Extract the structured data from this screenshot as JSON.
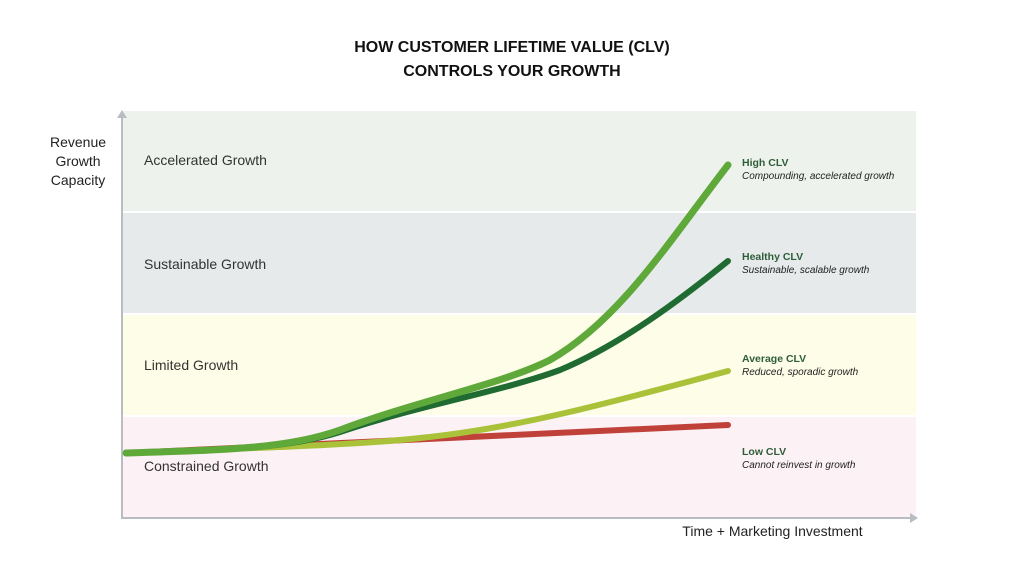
{
  "title": {
    "line1": "HOW CUSTOMER LIFETIME VALUE (CLV)",
    "line2": "CONTROLS YOUR GROWTH"
  },
  "axes": {
    "y_label_lines": [
      "Revenue",
      "Growth",
      "Capacity"
    ],
    "x_label": "Time + Marketing Investment"
  },
  "zones": [
    {
      "label": "Accelerated Growth",
      "color": "#edf3ec"
    },
    {
      "label": "Sustainable Growth",
      "color": "#e6eaea"
    },
    {
      "label": "Limited Growth",
      "color": "#fdfde8"
    },
    {
      "label": "Constrained Growth",
      "color": "#fcf1f4"
    }
  ],
  "series": [
    {
      "name": "High CLV",
      "description": "Compounding, accelerated growth",
      "color": "#5fa83a"
    },
    {
      "name": "Healthy CLV",
      "description": "Sustainable, scalable growth",
      "color": "#1f6b32"
    },
    {
      "name": "Average CLV",
      "description": "Reduced, sporadic growth",
      "color": "#a9c23a"
    },
    {
      "name": "Low CLV",
      "description": "Cannot reinvest in growth",
      "color": "#c0413a"
    }
  ]
}
